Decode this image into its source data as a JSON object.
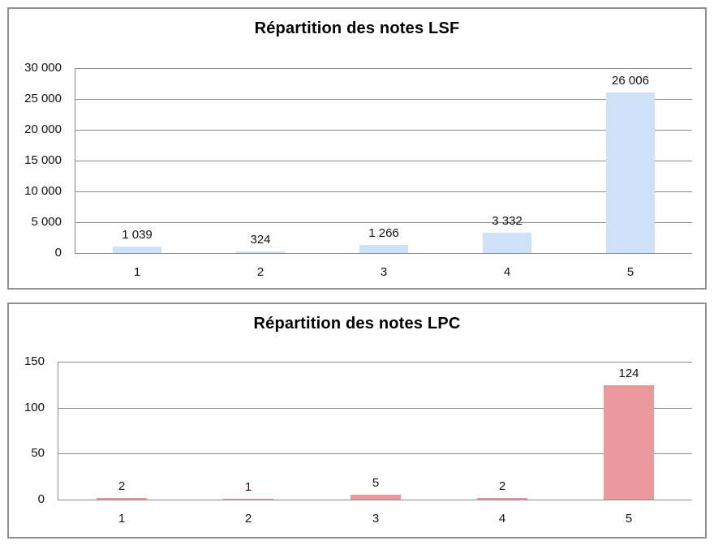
{
  "colors": {
    "lsf_bar": "#CFE1F6",
    "lpc_bar": "#E9999C",
    "gridline": "#8A8A8A",
    "card_border": "#8F8F8F",
    "text": "#111111",
    "title_text": "#000000"
  },
  "chart_data": [
    {
      "type": "bar",
      "title": "Répartition des notes LSF",
      "categories": [
        "1",
        "2",
        "3",
        "4",
        "5"
      ],
      "values": [
        1039,
        324,
        1266,
        3332,
        26006
      ],
      "value_labels": [
        "1 039",
        "324",
        "1 266",
        "3 332",
        "26 006"
      ],
      "xlabel": "",
      "ylabel": "",
      "ylim": [
        0,
        30000
      ],
      "y_ticks": [
        {
          "value": 0,
          "label": "0"
        },
        {
          "value": 5000,
          "label": "5 000"
        },
        {
          "value": 10000,
          "label": "10 000"
        },
        {
          "value": 15000,
          "label": "15 000"
        },
        {
          "value": 20000,
          "label": "20 000"
        },
        {
          "value": 25000,
          "label": "25 000"
        },
        {
          "value": 30000,
          "label": "30 000"
        }
      ],
      "grid": true,
      "legend": "none",
      "bar_color": "#CFE1F6"
    },
    {
      "type": "bar",
      "title": "Répartition des notes LPC",
      "categories": [
        "1",
        "2",
        "3",
        "4",
        "5"
      ],
      "values": [
        2,
        1,
        5,
        2,
        124
      ],
      "value_labels": [
        "2",
        "1",
        "5",
        "2",
        "124"
      ],
      "xlabel": "",
      "ylabel": "",
      "ylim": [
        0,
        150
      ],
      "y_ticks": [
        {
          "value": 0,
          "label": "0"
        },
        {
          "value": 50,
          "label": "50"
        },
        {
          "value": 100,
          "label": "100"
        },
        {
          "value": 150,
          "label": "150"
        }
      ],
      "grid": true,
      "legend": "none",
      "bar_color": "#E9999C"
    }
  ]
}
